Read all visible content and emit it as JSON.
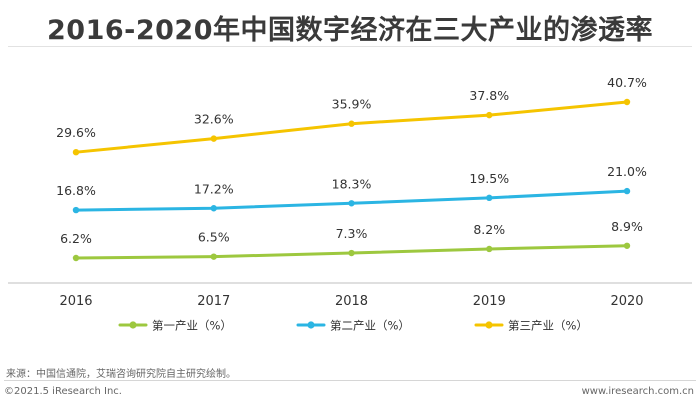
{
  "page": {
    "title": "2016-2020年中国数字经济在三大产业的渗透率",
    "source": "来源：中国信通院，艾瑞咨询研究院自主研究绘制。",
    "copyright": "©2021.5 iResearch Inc.",
    "website": "www.iresearch.com.cn"
  },
  "chart_data": {
    "type": "line",
    "title": "2016-2020年中国数字经济在三大产业的渗透率",
    "x": [
      "2016",
      "2017",
      "2018",
      "2019",
      "2020"
    ],
    "series": [
      {
        "name": "第一产业（%）",
        "values": [
          6.2,
          6.5,
          7.3,
          8.2,
          8.9
        ],
        "labels": [
          "6.2%",
          "6.5%",
          "7.3%",
          "8.2%",
          "8.9%"
        ],
        "color": "#9DC83F"
      },
      {
        "name": "第二产业（%）",
        "values": [
          16.8,
          17.2,
          18.3,
          19.5,
          21.0
        ],
        "labels": [
          "16.8%",
          "17.2%",
          "18.3%",
          "19.5%",
          "21.0%"
        ],
        "color": "#2BB5E3"
      },
      {
        "name": "第三产业（%）",
        "values": [
          29.6,
          32.6,
          35.9,
          37.8,
          40.7
        ],
        "labels": [
          "29.6%",
          "32.6%",
          "35.9%",
          "37.8%",
          "40.7%"
        ],
        "color": "#F5C400"
      }
    ],
    "xlabel": "",
    "ylabel": "",
    "ylim": [
      0,
      45
    ],
    "grid": false,
    "legend_position": "bottom"
  }
}
